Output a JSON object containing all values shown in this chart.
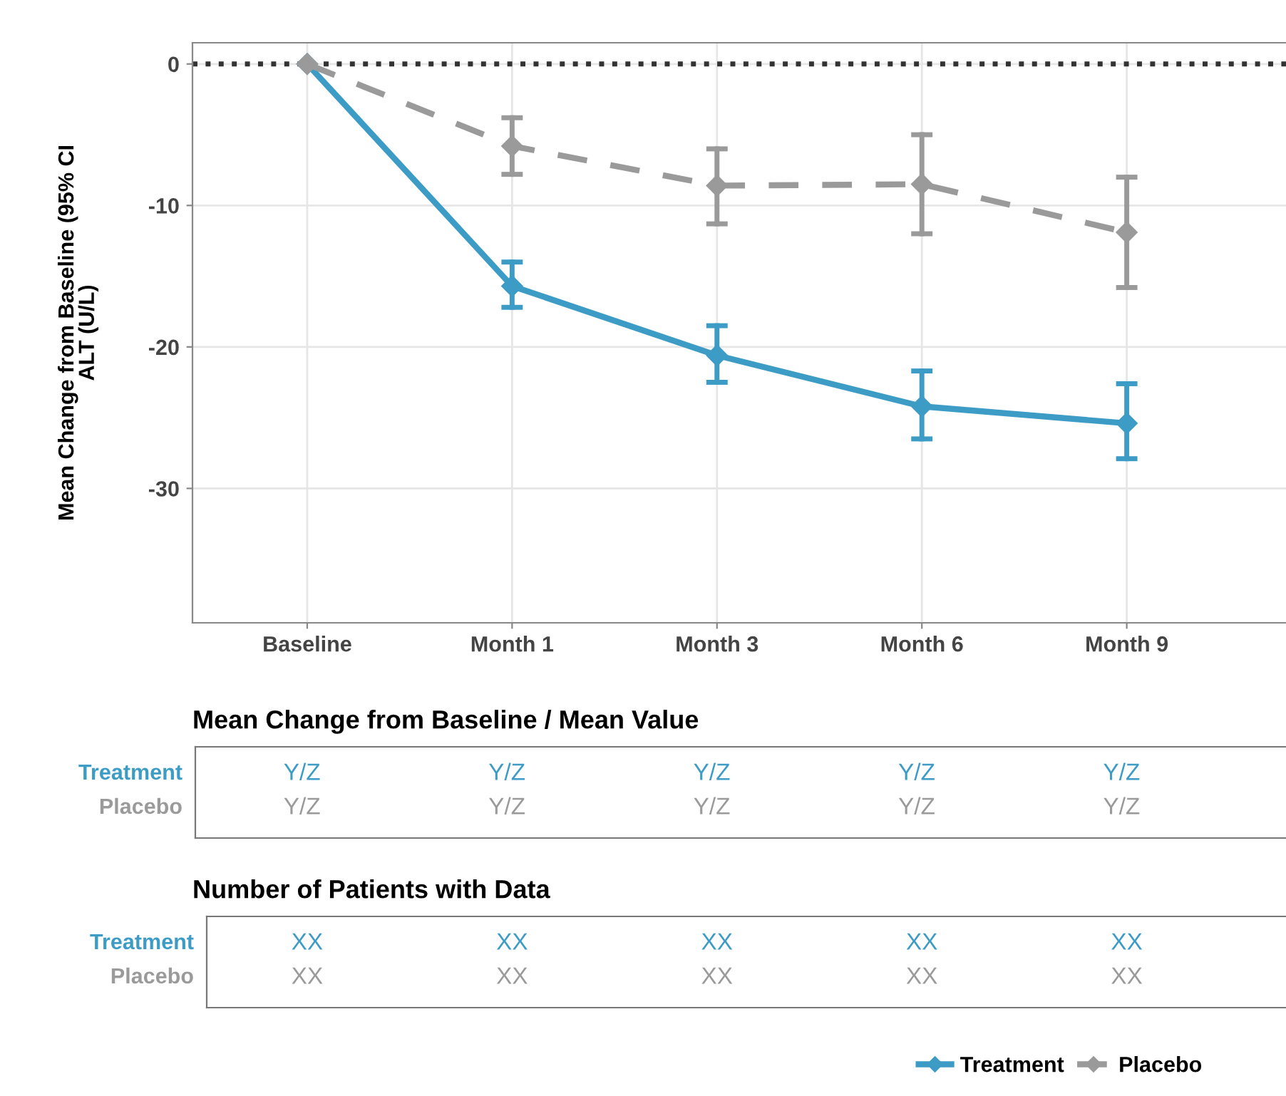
{
  "chart_data": {
    "type": "line",
    "ylabel": "Mean Change from Baseline (95% CI\nALT (U/L)",
    "categories": [
      "Baseline",
      "Month 1",
      "Month 3",
      "Month 6",
      "Month 9"
    ],
    "series": [
      {
        "name": "Treatment",
        "color": "#3d9cc6",
        "values": [
          0,
          -15.7,
          -20.6,
          -24.2,
          -25.4
        ],
        "errors": [
          null,
          [
            -17.2,
            -14.0
          ],
          [
            -22.5,
            -18.5
          ],
          [
            -26.5,
            -21.7
          ],
          [
            -27.9,
            -22.6
          ]
        ],
        "line_style": "solid"
      },
      {
        "name": "Placebo",
        "color": "#9a9a9a",
        "values": [
          0,
          -5.8,
          -8.6,
          -8.5,
          -11.9
        ],
        "errors": [
          null,
          [
            -7.8,
            -3.8
          ],
          [
            -11.3,
            -6.0
          ],
          [
            -12.0,
            -5.0
          ],
          [
            -15.8,
            -8.0
          ]
        ],
        "line_style": "dashed"
      }
    ],
    "ylim": [
      -39.5,
      1.5
    ],
    "yticks": [
      0,
      -10,
      -20,
      -30
    ],
    "grid": true,
    "legend": "bottom right",
    "marker": "diamond",
    "ref_lines": [
      {
        "axis": "y",
        "value": 0,
        "line_style": "dotted",
        "color": "#333333"
      }
    ],
    "annotations": [
      "Mean Change from Baseline / Mean Value",
      "Treatment",
      "Placebo",
      "Y/Z",
      "Y/Z",
      "Y/Z",
      "Y/Z",
      "Y/Z",
      "Y/Z",
      "Y/Z",
      "Y/Z",
      "Y/Z",
      "Y/Z",
      "Number of Patients with Data",
      "Treatment",
      "Placebo",
      "XX",
      "XX",
      "XX",
      "XX",
      "XX",
      "XX",
      "XX",
      "XX",
      "XX",
      "XX"
    ]
  }
}
